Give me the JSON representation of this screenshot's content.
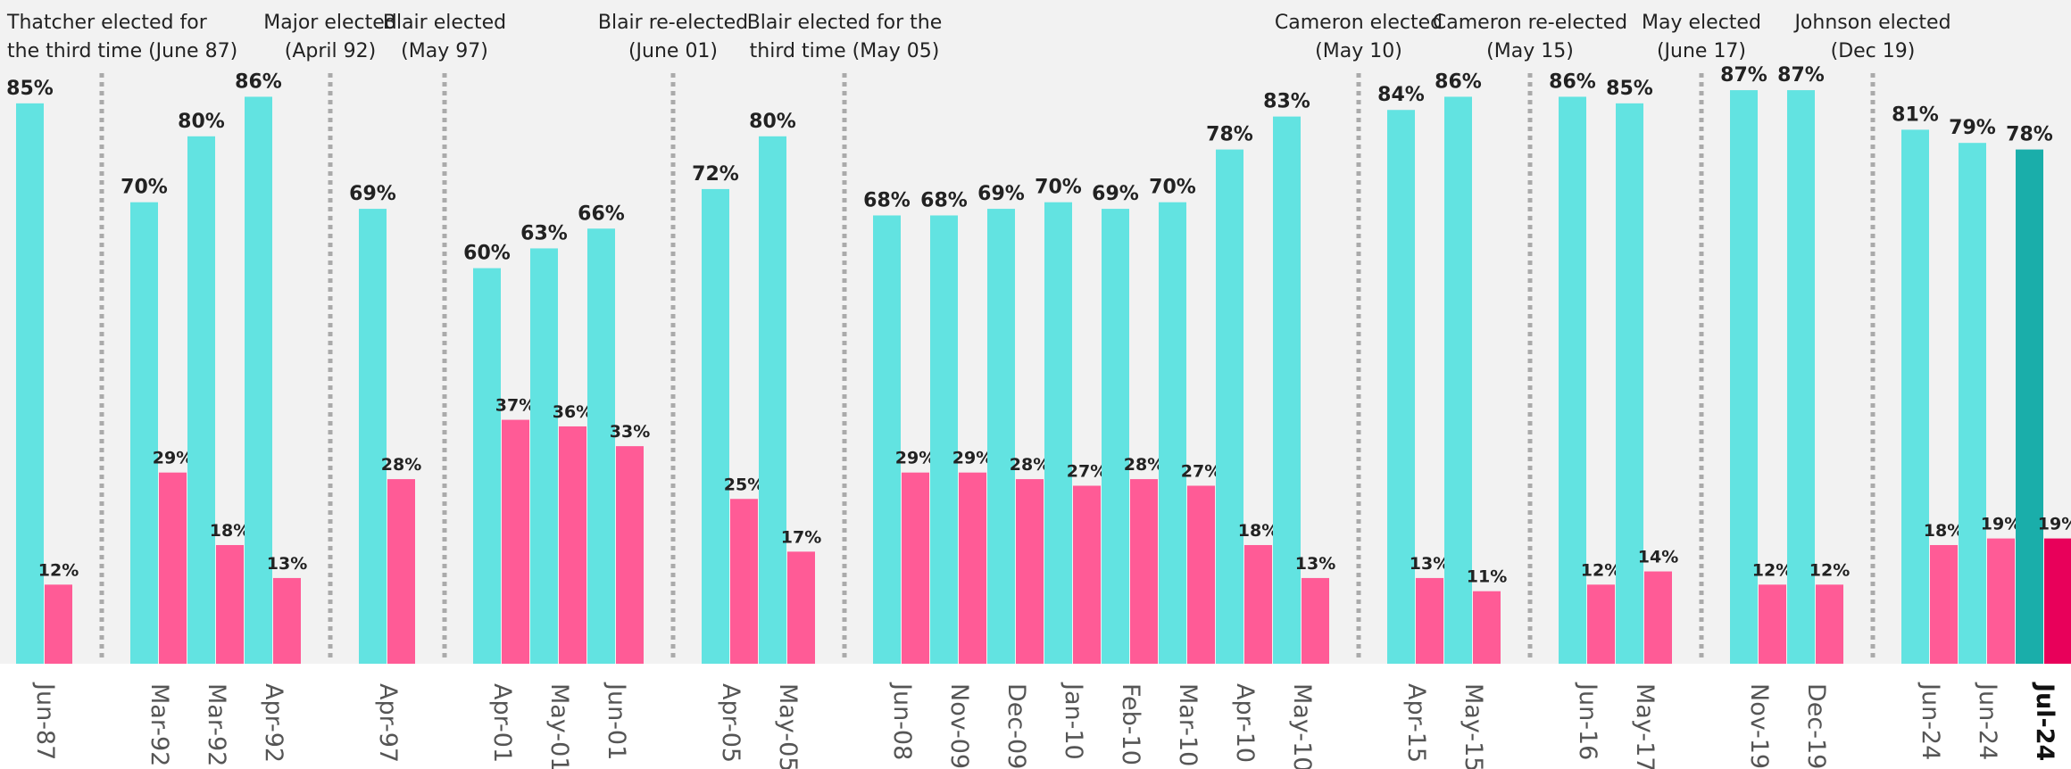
{
  "chart_data": {
    "type": "bar",
    "categories": [
      "Jun-87",
      "Mar-92",
      "Mar-92",
      "Apr-92",
      "Apr-97",
      "Apr-01",
      "May-01",
      "Jun-01",
      "Apr-05",
      "May-05",
      "Jun-08",
      "Nov-09",
      "Dec-09",
      "Jan-10",
      "Feb-10",
      "Mar-10",
      "Apr-10",
      "May-10",
      "Apr-15",
      "May-15",
      "Jun-16",
      "May-17",
      "Nov-19",
      "Dec-19",
      "Jun-24",
      "Jun-24",
      "Jul-24"
    ],
    "series": [
      {
        "color": "#62e3e1",
        "highlight_color": "#1aaeaa",
        "values": [
          85,
          70,
          80,
          86,
          69,
          60,
          63,
          66,
          72,
          80,
          68,
          68,
          69,
          70,
          69,
          70,
          78,
          83,
          84,
          86,
          86,
          85,
          87,
          87,
          81,
          79,
          78
        ],
        "value_labels": [
          "85%",
          "70%",
          "80%",
          "86%",
          "69%",
          "60%",
          "63%",
          "66%",
          "72%",
          "80%",
          "68%",
          "68%",
          "69%",
          "70%",
          "69%",
          "70%",
          "78%",
          "83%",
          "84%",
          "86%",
          "86%",
          "85%",
          "87%",
          "87%",
          "81%",
          "79%",
          "78%"
        ]
      },
      {
        "color": "#ff5b96",
        "highlight_color": "#e8005a",
        "values": [
          12,
          29,
          18,
          13,
          28,
          37,
          36,
          33,
          25,
          17,
          29,
          29,
          28,
          27,
          28,
          27,
          18,
          13,
          13,
          11,
          12,
          14,
          12,
          12,
          18,
          19,
          19
        ],
        "value_labels": [
          "12%",
          "29%",
          "18%",
          "13%",
          "28%",
          "37%",
          "36%",
          "33%",
          "25%",
          "17%",
          "29%",
          "29%",
          "28%",
          "27%",
          "28%",
          "27%",
          "18%",
          "13%",
          "13%",
          "11%",
          "12%",
          "14%",
          "12%",
          "12%",
          "18%",
          "19%",
          "19%"
        ]
      }
    ],
    "highlight_index": 26,
    "annotations": [
      {
        "before": 1,
        "lines": [
          "Thatcher elected for",
          "the third time (June 87)"
        ]
      },
      {
        "before": 4,
        "lines": [
          "Major elected",
          "(April 92)"
        ]
      },
      {
        "before": 5,
        "lines": [
          "Blair elected",
          "(May 97)"
        ]
      },
      {
        "before": 8,
        "lines": [
          "Blair re-elected",
          "(June 01)"
        ]
      },
      {
        "before": 10,
        "lines": [
          "Blair elected for the",
          "third time (May 05)"
        ]
      },
      {
        "before": 18,
        "lines": [
          "Cameron elected",
          "(May 10)"
        ]
      },
      {
        "before": 20,
        "lines": [
          "Cameron re-elected",
          "(May 15)"
        ]
      },
      {
        "before": 22,
        "lines": [
          "May elected",
          "(June 17)"
        ]
      },
      {
        "before": 24,
        "lines": [
          "Johnson elected",
          "(Dec 19)"
        ]
      }
    ]
  }
}
